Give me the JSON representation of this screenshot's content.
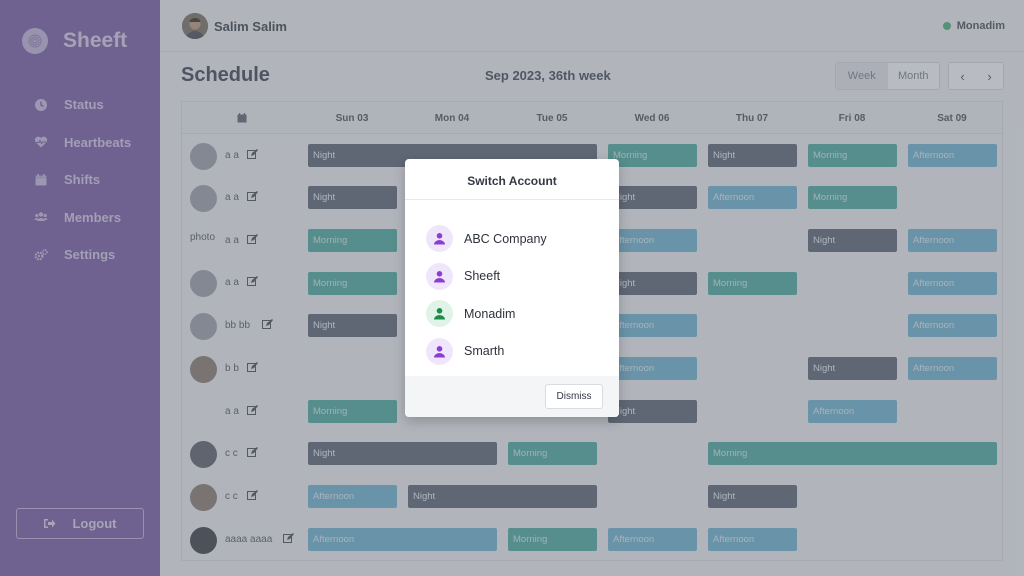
{
  "app": {
    "name": "Sheeft"
  },
  "sidebar": {
    "items": [
      {
        "label": "Status",
        "icon": "clock-icon"
      },
      {
        "label": "Heartbeats",
        "icon": "heartbeat-icon"
      },
      {
        "label": "Shifts",
        "icon": "calendar-icon"
      },
      {
        "label": "Members",
        "icon": "users-icon"
      },
      {
        "label": "Settings",
        "icon": "gears-icon"
      }
    ],
    "logout_label": "Logout"
  },
  "header": {
    "user_name": "Salim Salim",
    "active_account": "Monadim",
    "status_color": "#47b37a"
  },
  "schedule": {
    "title": "Schedule",
    "period": "Sep 2023, 36th week",
    "view_week": "Week",
    "view_month": "Month",
    "prev": "‹",
    "next": "›",
    "columns": [
      "Sun 03",
      "Mon 04",
      "Tue 05",
      "Wed 06",
      "Thu 07",
      "Fri 08",
      "Sat 09"
    ],
    "rows": [
      {
        "label": "a a"
      },
      {
        "label": "a a"
      },
      {
        "label": "a a",
        "photo_text": "photo"
      },
      {
        "label": "a a"
      },
      {
        "label": "bb bb"
      },
      {
        "label": "b b"
      },
      {
        "label": "a a"
      },
      {
        "label": "c c"
      },
      {
        "label": "c c"
      },
      {
        "label": "aaaa aaaa"
      }
    ],
    "shift_labels": {
      "night": "Night",
      "morning": "Morning",
      "afternoon": "Afternoon"
    },
    "colors": {
      "night": "#5e6676",
      "morning": "#4cae9f",
      "afternoon": "#70b7d1"
    }
  },
  "modal": {
    "title": "Switch Account",
    "accounts": [
      {
        "name": "ABC Company",
        "color": "#8b3fd1"
      },
      {
        "name": "Sheeft",
        "color": "#8b3fd1"
      },
      {
        "name": "Monadim",
        "color": "#1f8a4a"
      },
      {
        "name": "Smarth",
        "color": "#8b3fd1"
      }
    ],
    "dismiss_label": "Dismiss"
  }
}
